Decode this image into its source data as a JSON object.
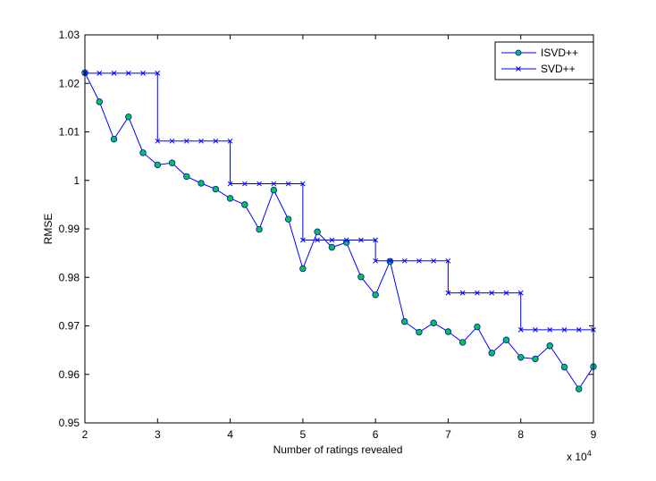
{
  "chart_data": {
    "type": "line",
    "xlabel": "Number of ratings revealed",
    "ylabel": "RMSE",
    "x_multiplier_label": "x 10",
    "x_multiplier_exp": "4",
    "xlim": [
      2,
      9
    ],
    "ylim": [
      0.95,
      1.03
    ],
    "xticks": [
      "2",
      "3",
      "4",
      "5",
      "6",
      "7",
      "8",
      "9"
    ],
    "yticks": [
      "0.95",
      "0.96",
      "0.97",
      "0.98",
      "0.99",
      "1",
      "1.01",
      "1.02",
      "1.03"
    ],
    "grid": false,
    "legend_position": "top-right",
    "series": [
      {
        "name": "ISVD++",
        "color": "#0000ff",
        "marker": "circle",
        "marker_color": "#00cc33",
        "x": [
          2.0,
          2.2,
          2.4,
          2.6,
          2.8,
          3.0,
          3.2,
          3.4,
          3.6,
          3.8,
          4.0,
          4.2,
          4.4,
          4.6,
          4.8,
          5.0,
          5.2,
          5.4,
          5.6,
          5.8,
          6.0,
          6.2,
          6.4,
          6.6,
          6.8,
          7.0,
          7.2,
          7.4,
          7.6,
          7.8,
          8.0,
          8.2,
          8.4,
          8.6,
          8.8,
          9.0
        ],
        "y": [
          1.0222,
          1.0162,
          1.0085,
          1.0131,
          1.0057,
          1.0032,
          1.0036,
          1.0008,
          0.9994,
          0.9982,
          0.9963,
          0.995,
          0.9899,
          0.998,
          0.992,
          0.9818,
          0.9894,
          0.9862,
          0.9872,
          0.9801,
          0.9764,
          0.9833,
          0.9709,
          0.9687,
          0.9706,
          0.9688,
          0.9666,
          0.9698,
          0.9644,
          0.9671,
          0.9635,
          0.9632,
          0.9659,
          0.9615,
          0.957,
          0.9616
        ]
      },
      {
        "name": "SVD++",
        "color": "#0000ff",
        "marker": "x",
        "x": [
          2.0,
          2.2,
          2.4,
          2.6,
          2.8,
          3.0,
          3.0,
          3.2,
          3.4,
          3.6,
          3.8,
          4.0,
          4.0,
          4.2,
          4.4,
          4.6,
          4.8,
          5.0,
          5.0,
          5.2,
          5.4,
          5.6,
          5.8,
          6.0,
          6.0,
          6.2,
          6.4,
          6.6,
          6.8,
          7.0,
          7.0,
          7.2,
          7.4,
          7.6,
          7.8,
          8.0,
          8.0,
          8.2,
          8.4,
          8.6,
          8.8,
          9.0
        ],
        "y": [
          1.0221,
          1.0221,
          1.0221,
          1.0221,
          1.0221,
          1.0221,
          1.0081,
          1.0081,
          1.0081,
          1.0081,
          1.0081,
          1.0081,
          0.9993,
          0.9993,
          0.9993,
          0.9993,
          0.9993,
          0.9993,
          0.9877,
          0.9877,
          0.9877,
          0.9877,
          0.9877,
          0.9877,
          0.9834,
          0.9834,
          0.9834,
          0.9834,
          0.9834,
          0.9834,
          0.9768,
          0.9768,
          0.9768,
          0.9768,
          0.9768,
          0.9768,
          0.9692,
          0.9692,
          0.9692,
          0.9692,
          0.9692,
          0.9692
        ]
      }
    ]
  }
}
